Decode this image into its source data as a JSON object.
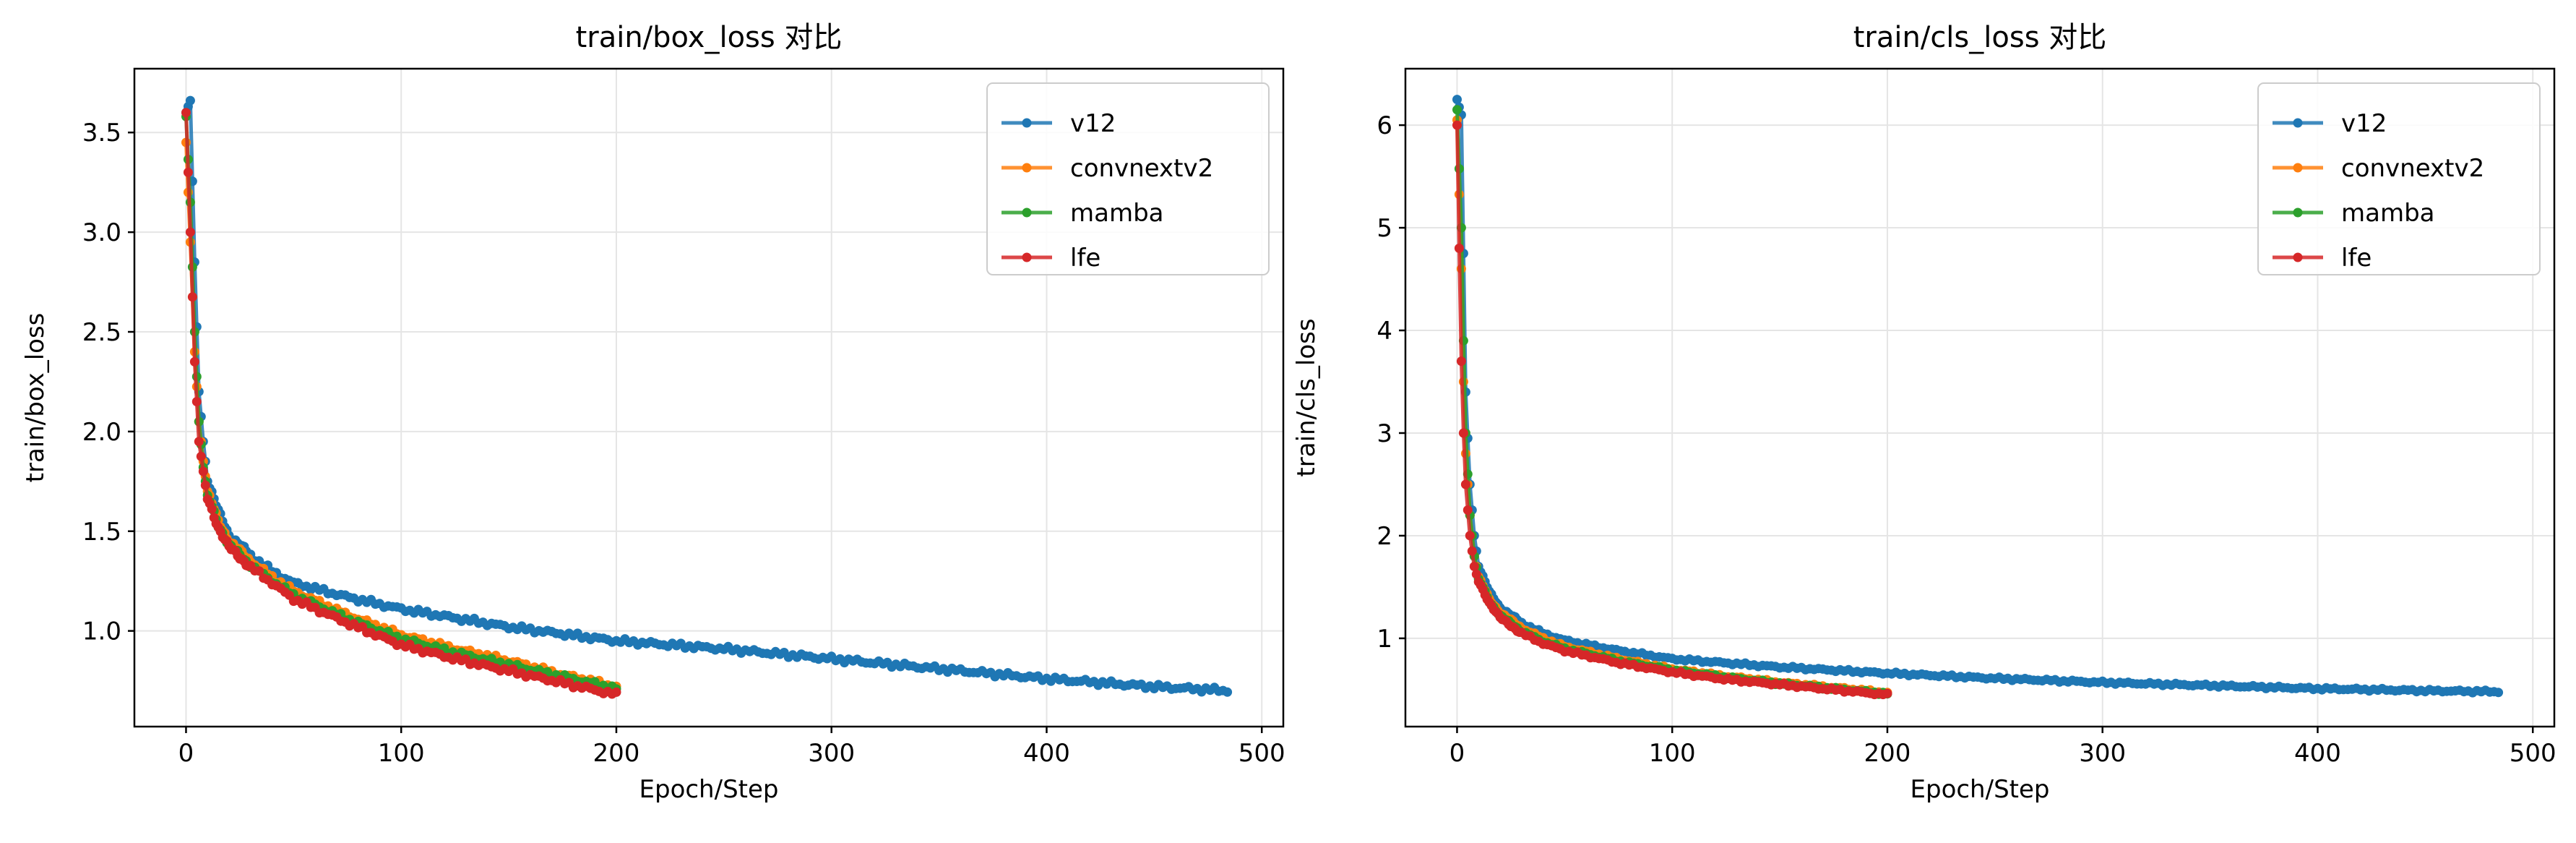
{
  "colors": {
    "v12": "#1f77b4",
    "convnextv2": "#ff7f0e",
    "mamba": "#2ca02c",
    "lfe": "#d62728",
    "grid": "#e5e5e5",
    "axis": "#000000"
  },
  "chart_data": [
    {
      "type": "line",
      "title": "train/box_loss 对比",
      "xlabel": "Epoch/Step",
      "ylabel": "train/box_loss",
      "xlim": [
        -24,
        510
      ],
      "ylim": [
        0.52,
        3.82
      ],
      "xticks": [
        0,
        100,
        200,
        300,
        400,
        500
      ],
      "yticks": [
        1.0,
        1.5,
        2.0,
        2.5,
        3.0,
        3.5
      ],
      "ytick_labels": [
        "1.0",
        "1.5",
        "2.0",
        "2.5",
        "3.0",
        "3.5"
      ],
      "grid": true,
      "legend_position": "top-right",
      "series": [
        {
          "name": "v12",
          "peak": 3.66,
          "start": 3.6,
          "end_x": 485,
          "anchors": [
            [
              0,
              3.6
            ],
            [
              2,
              3.66
            ],
            [
              4,
              2.85
            ],
            [
              6,
              2.2
            ],
            [
              8,
              1.95
            ],
            [
              10,
              1.75
            ],
            [
              15,
              1.6
            ],
            [
              20,
              1.48
            ],
            [
              30,
              1.38
            ],
            [
              40,
              1.3
            ],
            [
              50,
              1.24
            ],
            [
              75,
              1.17
            ],
            [
              100,
              1.11
            ],
            [
              150,
              1.02
            ],
            [
              200,
              0.95
            ],
            [
              250,
              0.91
            ],
            [
              300,
              0.86
            ],
            [
              350,
              0.81
            ],
            [
              400,
              0.76
            ],
            [
              450,
              0.72
            ],
            [
              485,
              0.7
            ]
          ]
        },
        {
          "name": "convnextv2",
          "peak": 3.45,
          "start": 3.45,
          "end_x": 200,
          "anchors": [
            [
              0,
              3.45
            ],
            [
              2,
              2.95
            ],
            [
              4,
              2.4
            ],
            [
              6,
              2.05
            ],
            [
              8,
              1.85
            ],
            [
              10,
              1.7
            ],
            [
              15,
              1.55
            ],
            [
              20,
              1.45
            ],
            [
              30,
              1.35
            ],
            [
              40,
              1.27
            ],
            [
              50,
              1.2
            ],
            [
              75,
              1.08
            ],
            [
              100,
              0.98
            ],
            [
              125,
              0.91
            ],
            [
              150,
              0.85
            ],
            [
              175,
              0.78
            ],
            [
              200,
              0.72
            ]
          ]
        },
        {
          "name": "mamba",
          "peak": 3.58,
          "start": 3.58,
          "end_x": 200,
          "anchors": [
            [
              0,
              3.58
            ],
            [
              2,
              3.15
            ],
            [
              4,
              2.5
            ],
            [
              6,
              2.05
            ],
            [
              8,
              1.82
            ],
            [
              10,
              1.68
            ],
            [
              15,
              1.53
            ],
            [
              20,
              1.43
            ],
            [
              30,
              1.33
            ],
            [
              40,
              1.25
            ],
            [
              50,
              1.18
            ],
            [
              75,
              1.06
            ],
            [
              100,
              0.96
            ],
            [
              125,
              0.89
            ],
            [
              150,
              0.83
            ],
            [
              175,
              0.77
            ],
            [
              200,
              0.71
            ]
          ]
        },
        {
          "name": "lfe",
          "peak": 3.6,
          "start": 3.6,
          "end_x": 200,
          "anchors": [
            [
              0,
              3.6
            ],
            [
              2,
              3.0
            ],
            [
              4,
              2.35
            ],
            [
              6,
              1.95
            ],
            [
              8,
              1.8
            ],
            [
              10,
              1.66
            ],
            [
              15,
              1.52
            ],
            [
              20,
              1.42
            ],
            [
              30,
              1.32
            ],
            [
              40,
              1.24
            ],
            [
              50,
              1.16
            ],
            [
              75,
              1.04
            ],
            [
              100,
              0.93
            ],
            [
              125,
              0.86
            ],
            [
              150,
              0.8
            ],
            [
              175,
              0.74
            ],
            [
              200,
              0.68
            ]
          ]
        }
      ]
    },
    {
      "type": "line",
      "title": "train/cls_loss 对比",
      "xlabel": "Epoch/Step",
      "ylabel": "train/cls_loss",
      "xlim": [
        -24,
        510
      ],
      "ylim": [
        0.14,
        6.55
      ],
      "xticks": [
        0,
        100,
        200,
        300,
        400,
        500
      ],
      "yticks": [
        1,
        2,
        3,
        4,
        5,
        6
      ],
      "ytick_labels": [
        "1",
        "2",
        "3",
        "4",
        "5",
        "6"
      ],
      "grid": true,
      "legend_position": "top-right",
      "series": [
        {
          "name": "v12",
          "peak": 6.25,
          "start": 6.25,
          "end_x": 485,
          "anchors": [
            [
              0,
              6.25
            ],
            [
              2,
              6.1
            ],
            [
              4,
              3.4
            ],
            [
              6,
              2.5
            ],
            [
              8,
              2.0
            ],
            [
              10,
              1.7
            ],
            [
              15,
              1.45
            ],
            [
              20,
              1.3
            ],
            [
              30,
              1.15
            ],
            [
              40,
              1.05
            ],
            [
              50,
              0.98
            ],
            [
              75,
              0.88
            ],
            [
              100,
              0.8
            ],
            [
              150,
              0.72
            ],
            [
              200,
              0.66
            ],
            [
              250,
              0.61
            ],
            [
              300,
              0.57
            ],
            [
              350,
              0.54
            ],
            [
              400,
              0.51
            ],
            [
              450,
              0.49
            ],
            [
              485,
              0.48
            ]
          ]
        },
        {
          "name": "convnextv2",
          "peak": 6.05,
          "start": 6.05,
          "end_x": 200,
          "anchors": [
            [
              0,
              6.05
            ],
            [
              2,
              4.6
            ],
            [
              3,
              3.5
            ],
            [
              4,
              2.8
            ],
            [
              6,
              2.2
            ],
            [
              8,
              1.8
            ],
            [
              10,
              1.6
            ],
            [
              15,
              1.38
            ],
            [
              20,
              1.25
            ],
            [
              30,
              1.1
            ],
            [
              40,
              1.0
            ],
            [
              50,
              0.92
            ],
            [
              75,
              0.8
            ],
            [
              100,
              0.7
            ],
            [
              125,
              0.63
            ],
            [
              150,
              0.57
            ],
            [
              175,
              0.52
            ],
            [
              200,
              0.47
            ]
          ]
        },
        {
          "name": "mamba",
          "peak": 6.15,
          "start": 6.15,
          "end_x": 200,
          "anchors": [
            [
              0,
              6.15
            ],
            [
              2,
              5.0
            ],
            [
              3,
              3.9
            ],
            [
              4,
              3.0
            ],
            [
              6,
              2.2
            ],
            [
              8,
              1.8
            ],
            [
              10,
              1.58
            ],
            [
              15,
              1.36
            ],
            [
              20,
              1.22
            ],
            [
              30,
              1.07
            ],
            [
              40,
              0.97
            ],
            [
              50,
              0.9
            ],
            [
              75,
              0.78
            ],
            [
              100,
              0.69
            ],
            [
              125,
              0.62
            ],
            [
              150,
              0.56
            ],
            [
              175,
              0.51
            ],
            [
              200,
              0.46
            ]
          ]
        },
        {
          "name": "lfe",
          "peak": 6.0,
          "start": 6.0,
          "end_x": 200,
          "anchors": [
            [
              0,
              6.0
            ],
            [
              1,
              4.8
            ],
            [
              2,
              3.7
            ],
            [
              3,
              3.0
            ],
            [
              4,
              2.5
            ],
            [
              6,
              2.0
            ],
            [
              8,
              1.7
            ],
            [
              10,
              1.55
            ],
            [
              15,
              1.35
            ],
            [
              20,
              1.2
            ],
            [
              30,
              1.05
            ],
            [
              40,
              0.95
            ],
            [
              50,
              0.88
            ],
            [
              75,
              0.76
            ],
            [
              100,
              0.67
            ],
            [
              125,
              0.6
            ],
            [
              150,
              0.55
            ],
            [
              175,
              0.5
            ],
            [
              200,
              0.45
            ]
          ]
        }
      ]
    }
  ]
}
